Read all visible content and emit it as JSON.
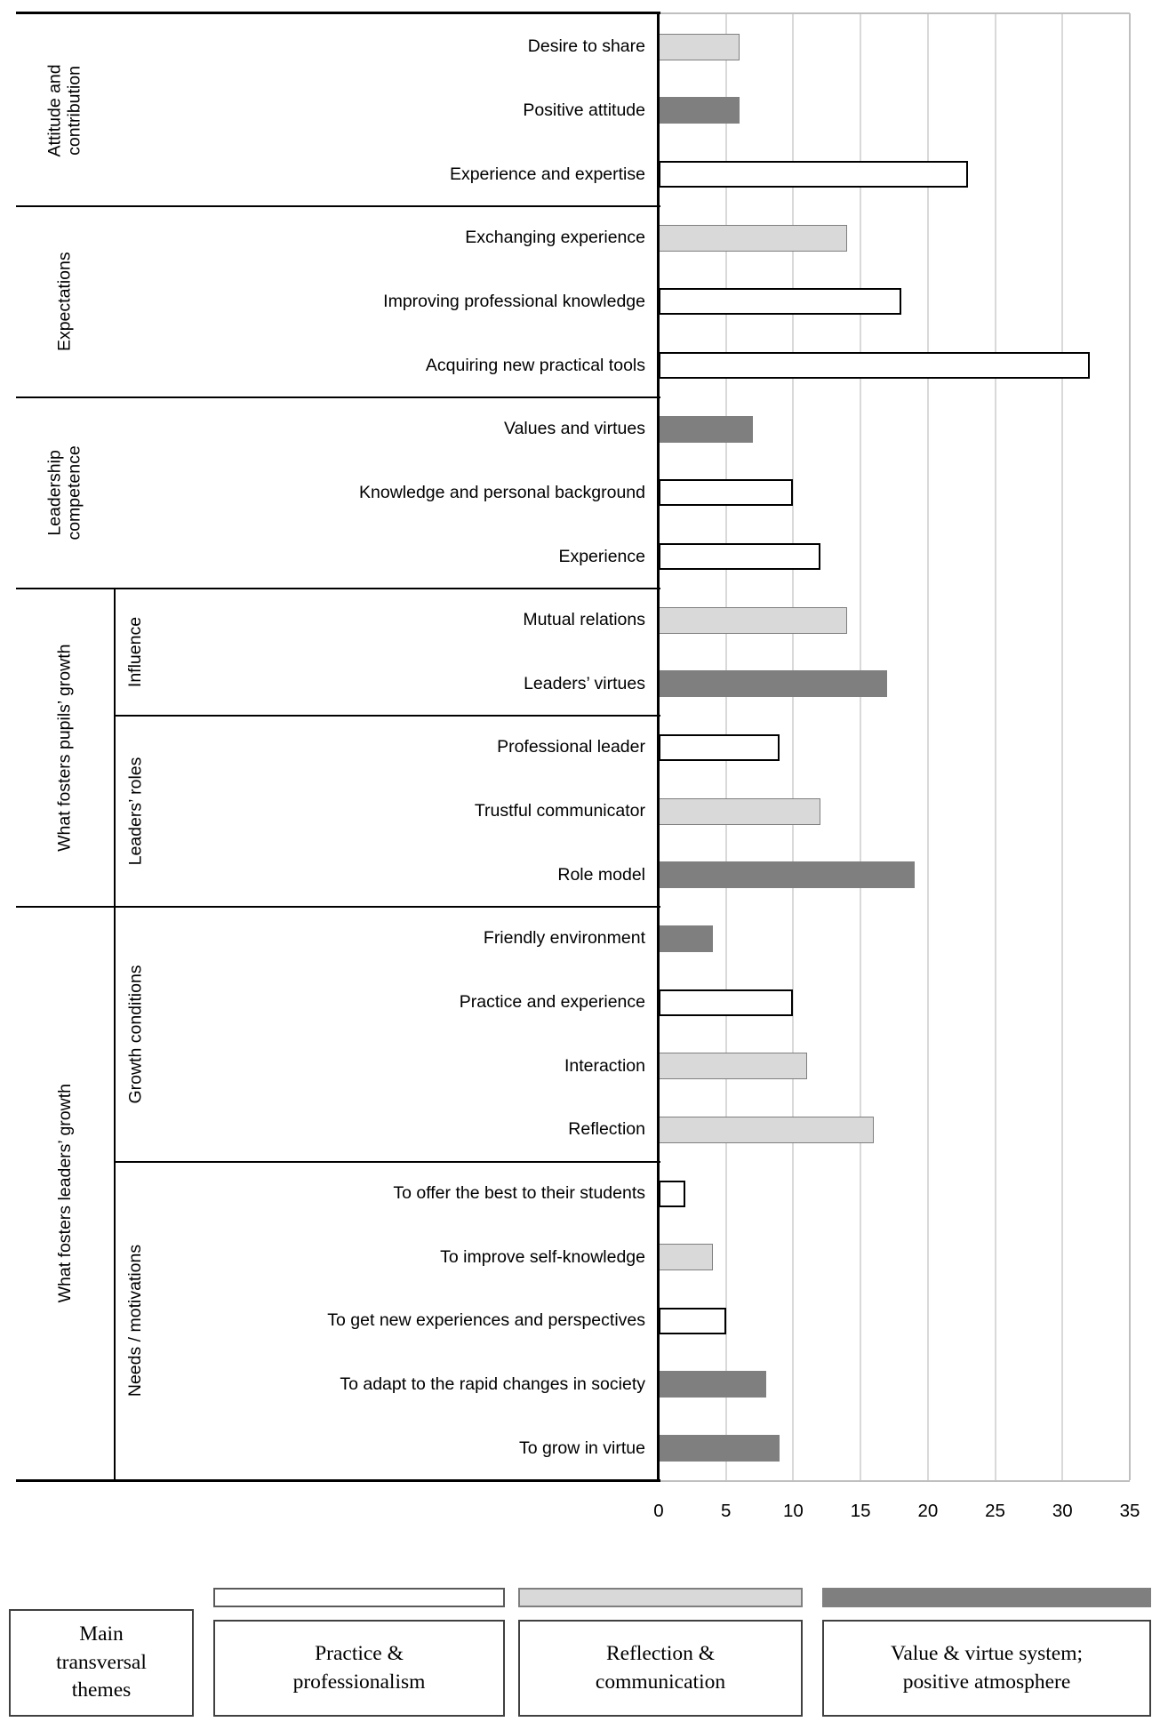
{
  "chart_data": {
    "type": "bar",
    "orientation": "horizontal",
    "title": "",
    "xlabel": "",
    "ylabel": "",
    "xlim": [
      0,
      35
    ],
    "x_ticks": [
      0,
      5,
      10,
      15,
      20,
      25,
      30,
      35
    ],
    "grid": true,
    "series": {
      "practice": {
        "name": "Practice & professionalism",
        "fill": "#ffffff",
        "border": "#000000",
        "border_width": 2.5
      },
      "reflection": {
        "name": "Reflection & communication",
        "fill": "#d9d9d9",
        "border": "#7f7f7f",
        "border_width": 1.5
      },
      "value": {
        "name": "Value & virtue system; positive atmosphere",
        "fill": "#7f7f7f",
        "border": "#7f7f7f",
        "border_width": 0
      }
    },
    "rows": [
      {
        "label": "Desire to share",
        "value": 6,
        "series": "reflection"
      },
      {
        "label": "Positive attitude",
        "value": 6,
        "series": "value"
      },
      {
        "label": "Experience and expertise",
        "value": 23,
        "series": "practice"
      },
      {
        "label": "Exchanging experience",
        "value": 14,
        "series": "reflection"
      },
      {
        "label": "Improving professional knowledge",
        "value": 18,
        "series": "practice"
      },
      {
        "label": "Acquiring new practical tools",
        "value": 32,
        "series": "practice"
      },
      {
        "label": "Values and virtues",
        "value": 7,
        "series": "value"
      },
      {
        "label": "Knowledge and personal background",
        "value": 10,
        "series": "practice"
      },
      {
        "label": "Experience",
        "value": 12,
        "series": "practice"
      },
      {
        "label": "Mutual relations",
        "value": 14,
        "series": "reflection"
      },
      {
        "label": "Leaders’ virtues",
        "value": 17,
        "series": "value"
      },
      {
        "label": "Professional leader",
        "value": 9,
        "series": "practice"
      },
      {
        "label": "Trustful communicator",
        "value": 12,
        "series": "reflection"
      },
      {
        "label": "Role model",
        "value": 19,
        "series": "value"
      },
      {
        "label": "Friendly environment",
        "value": 4,
        "series": "value"
      },
      {
        "label": "Practice and experience",
        "value": 10,
        "series": "practice"
      },
      {
        "label": "Interaction",
        "value": 11,
        "series": "reflection"
      },
      {
        "label": "Reflection",
        "value": 16,
        "series": "reflection"
      },
      {
        "label": "To offer the best to their students",
        "value": 2,
        "series": "practice"
      },
      {
        "label": "To improve self-knowledge",
        "value": 4,
        "series": "reflection"
      },
      {
        "label": "To get new experiences and perspectives",
        "value": 5,
        "series": "practice"
      },
      {
        "label": "To adapt to the rapid changes in society",
        "value": 8,
        "series": "value"
      },
      {
        "label": "To grow in virtue",
        "value": 9,
        "series": "value"
      }
    ],
    "groups": [
      {
        "label": "Attitude and\ncontribution",
        "start": 0,
        "end": 2,
        "has_sub": false
      },
      {
        "label": "Expectations",
        "start": 3,
        "end": 5,
        "has_sub": false
      },
      {
        "label": "Leadership\ncompetence",
        "start": 6,
        "end": 8,
        "has_sub": false
      },
      {
        "label": "What fosters pupils’ growth",
        "start": 9,
        "end": 13,
        "has_sub": true
      },
      {
        "label": "What fosters leaders’ growth",
        "start": 14,
        "end": 22,
        "has_sub": true
      }
    ],
    "subgroups": [
      {
        "label": "Influence",
        "start": 9,
        "end": 10
      },
      {
        "label": "Leaders’ roles",
        "start": 11,
        "end": 13
      },
      {
        "label": "Growth conditions",
        "start": 14,
        "end": 17
      },
      {
        "label": "Needs / motivations",
        "start": 18,
        "end": 22
      }
    ],
    "colors": {
      "gridline": "#d9d9d9",
      "plot_border": "#bfbfbf",
      "axis_line": "#000000"
    }
  },
  "legend": {
    "main_box_label": "Main\ntransversal\nthemes",
    "entries": [
      {
        "label": "Practice &\nprofessionalism",
        "series": "practice"
      },
      {
        "label": "Reflection &\ncommunication",
        "series": "reflection"
      },
      {
        "label": "Value & virtue system;\npositive atmosphere",
        "series": "value"
      }
    ]
  }
}
